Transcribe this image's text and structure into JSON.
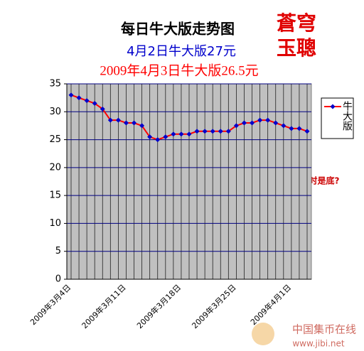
{
  "chart_data": {
    "type": "line",
    "title": "每日牛大版走势图",
    "subtitle": "4月2日牛大版27元",
    "subtitle2": "2009年4月3日牛大版26.5元",
    "stamp": [
      "蒼穹",
      "玉聰"
    ],
    "annotation": "何时是底?",
    "watermark": [
      "中国集币在线",
      "www.jibi.net"
    ],
    "categories": [
      "2009年3月4日",
      null,
      null,
      null,
      null,
      null,
      null,
      "2009年3月11日",
      null,
      null,
      null,
      null,
      null,
      null,
      "2009年3月18日",
      null,
      null,
      null,
      null,
      null,
      null,
      "2009年3月25日",
      null,
      null,
      null,
      null,
      null,
      null,
      "2009年4月1日",
      null,
      null
    ],
    "series": [
      {
        "name": "牛大版",
        "color": "#ff0000",
        "marker_color": "#0000cc",
        "values": [
          33,
          32.5,
          32,
          31.5,
          30.5,
          28.5,
          28.5,
          28,
          28,
          27.5,
          25.5,
          25,
          25.5,
          26,
          26,
          26,
          26.5,
          26.5,
          26.5,
          26.5,
          26.5,
          27.5,
          28,
          28,
          28.5,
          28.5,
          28,
          27.5,
          27,
          27,
          26.5
        ]
      }
    ],
    "ylim": [
      0,
      35
    ],
    "yticks": [
      0,
      5,
      10,
      15,
      20,
      25,
      30,
      35
    ],
    "grid": true
  }
}
